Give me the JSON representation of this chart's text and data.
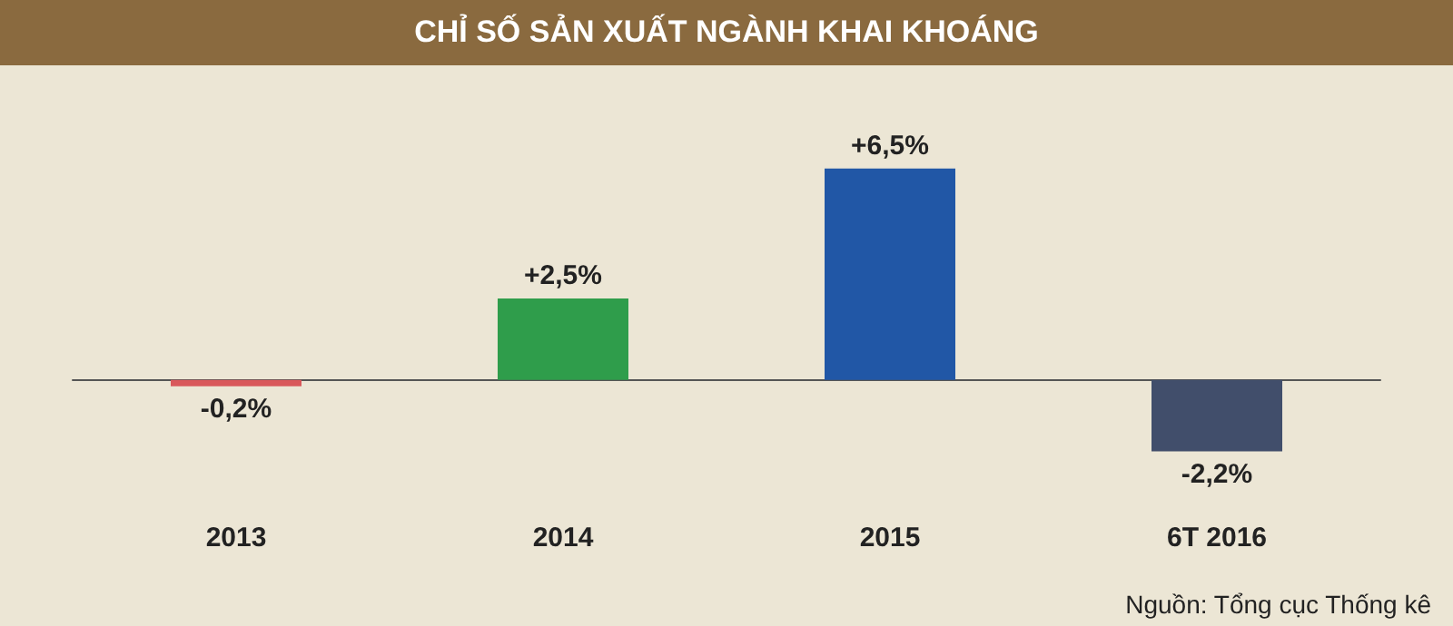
{
  "chart_data": {
    "type": "bar",
    "title": "CHỈ SỐ SẢN XUẤT NGÀNH KHAI KHOÁNG",
    "categories": [
      "2013",
      "2014",
      "2015",
      "6T 2016"
    ],
    "values": [
      -0.2,
      2.5,
      6.5,
      -2.2
    ],
    "colors": [
      "#d9585b",
      "#2f9d4b",
      "#2157a6",
      "#414e6b"
    ],
    "value_labels": [
      "-0,2%",
      "+2,5%",
      "+6,5%",
      "-2,2%"
    ],
    "tick_labels": "x",
    "grid": false,
    "annotations": [
      "Nguồn: Tổng cục Thống kê"
    ]
  }
}
